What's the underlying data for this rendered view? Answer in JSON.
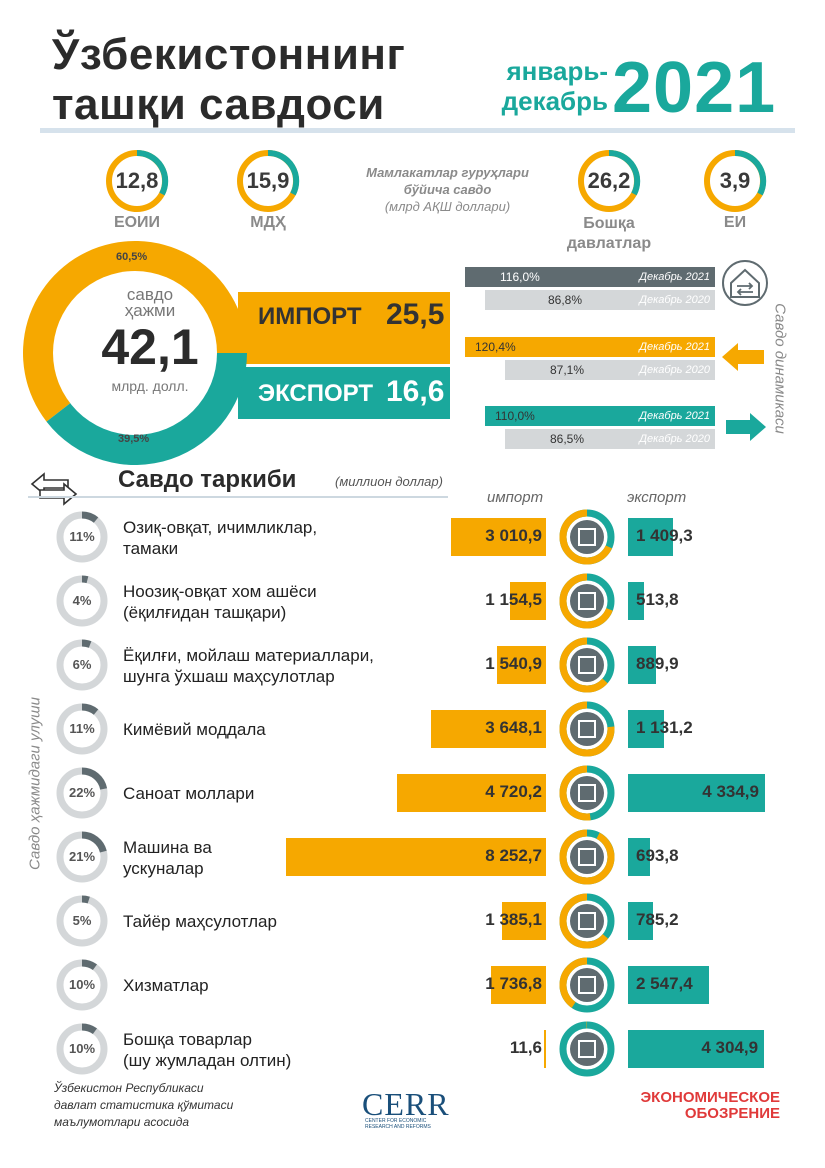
{
  "header": {
    "title_line1": "Ўзбекистоннинг",
    "title_line2": "ташқи савдоси",
    "period_line1": "январь-",
    "period_line2": "декабрь",
    "year": "2021"
  },
  "groups": {
    "title_line1": "Мамлакатлар гуруҳлари",
    "title_line2": "бўйича савдо",
    "title_line3": "(млрд АҚШ доллари)",
    "items": [
      {
        "value": "12,8",
        "label_line1": "ЕОИИ",
        "label_line2": ""
      },
      {
        "value": "15,9",
        "label_line1": "МДҲ",
        "label_line2": ""
      },
      {
        "value": "26,2",
        "label_line1": "Бошқа",
        "label_line2": "давлатлар"
      },
      {
        "value": "3,9",
        "label_line1": "ЕИ",
        "label_line2": ""
      }
    ]
  },
  "volume": {
    "label_line1": "савдо",
    "label_line2": "ҳажми",
    "value": "42,1",
    "unit": "млрд. долл.",
    "import_share_label": "60,5%",
    "export_share_label": "39,5%",
    "import_share": 60.5,
    "export_share": 39.5,
    "import_label": "ИМПОРТ",
    "import_value": "25,5",
    "export_label": "ЭКСПОРТ",
    "export_value": "16,6"
  },
  "dynamics": {
    "side_label": "Савдо динамикаси",
    "rows": [
      {
        "v2021": "116,0%",
        "l2021": "Декабрь 2021",
        "v2020": "86,8%",
        "l2020": "Декабрь 2020"
      },
      {
        "v2021": "120,4%",
        "l2021": "Декабрь 2021",
        "v2020": "87,1%",
        "l2020": "Декабрь 2020"
      },
      {
        "v2021": "110,0%",
        "l2021": "Декабрь 2021",
        "v2020": "86,5%",
        "l2020": "Декабрь 2020"
      }
    ]
  },
  "structure": {
    "title": "Савдо таркиби",
    "subtitle": "(миллион доллар)",
    "import_header": "импорт",
    "export_header": "экспорт",
    "side_label": "Савдо ҳажмидаги улуши"
  },
  "chart_data": {
    "type": "bar",
    "title": "Савдо таркиби",
    "unit": "(миллион доллар)",
    "categories": [
      "Озиқ-овқат, ичимликлар, тамаки",
      "Ноозиқ-овқат хом ашёси (ёқилғидан ташқари)",
      "Ёқилғи, мойлаш материаллари, шунга ўхшаш маҳсулотлар",
      "Кимёвий моддала",
      "Саноат моллари",
      "Машина ва ускуналар",
      "Тайёр маҳсулотлар",
      "Хизматлар",
      "Бошқа товарлар (шу жумладан олтин)"
    ],
    "series": [
      {
        "name": "импорт",
        "values": [
          3010.9,
          1154.5,
          1540.9,
          3648.1,
          4720.2,
          8252.7,
          1385.1,
          1736.8,
          11.6
        ],
        "labels": [
          "3 010,9",
          "1 154,5",
          "1 540,9",
          "3 648,1",
          "4 720,2",
          "8 252,7",
          "1 385,1",
          "1 736,8",
          "11,6"
        ]
      },
      {
        "name": "экспорт",
        "values": [
          1409.3,
          513.8,
          889.9,
          1131.2,
          4334.9,
          693.8,
          785.2,
          2547.4,
          4304.9
        ],
        "labels": [
          "1 409,3",
          "513,8",
          "889,9",
          "1 131,2",
          "4 334,9",
          "693,8",
          "785,2",
          "2 547,4",
          "4 304,9"
        ]
      }
    ],
    "shares": [
      "11%",
      "4%",
      "6%",
      "11%",
      "22%",
      "21%",
      "5%",
      "10%",
      "10%"
    ],
    "share_values": [
      11,
      4,
      6,
      11,
      22,
      21,
      5,
      10,
      10
    ]
  },
  "footer": {
    "source_line1": "Ўзбекистон Республикаси",
    "source_line2": "давлат статистика қўмитаси",
    "source_line3": "маълумотлари асосида",
    "cerr": "CERR",
    "cerr_sub1": "CENTER FOR ECONOMIC",
    "cerr_sub2": "RESEARCH AND REFORMS",
    "eo_line1": "ЭКОНОМИЧЕСКОЕ",
    "eo_line2": "ОБОЗРЕНИЕ"
  },
  "colors": {
    "orange": "#f6a800",
    "teal": "#1aa89c",
    "grey": "#5f6b70",
    "lightgrey": "#cfd3d6"
  }
}
